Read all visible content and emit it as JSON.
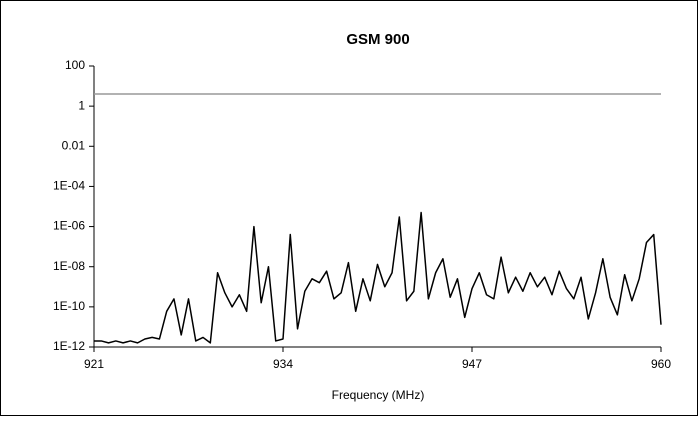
{
  "chart_data": {
    "type": "line",
    "title": "GSM 900",
    "xlabel": "Frequency (MHz)",
    "log_y": true,
    "xlim": [
      921,
      960
    ],
    "xticks": [
      921,
      934,
      947,
      960
    ],
    "ylim": [
      1e-12,
      100
    ],
    "yticks": [
      100,
      1,
      0.01,
      {
        "value": 0.0001,
        "label": "1E-04"
      },
      {
        "value": 1e-06,
        "label": "1E-06"
      },
      {
        "value": 1e-08,
        "label": "1E-08"
      },
      {
        "value": 1e-10,
        "label": "1E-10"
      },
      {
        "value": 1e-12,
        "label": "1E-12"
      }
    ],
    "series": [
      {
        "color": "#000000",
        "x": [
          921,
          921.5,
          922,
          922.5,
          923,
          923.5,
          924,
          924.5,
          925,
          925.5,
          926,
          926.5,
          927,
          927.5,
          928,
          928.5,
          929,
          929.5,
          930,
          930.5,
          931,
          931.5,
          932,
          932.5,
          933,
          933.5,
          934,
          934.5,
          935,
          935.5,
          936,
          936.5,
          937,
          937.5,
          938,
          938.5,
          939,
          939.5,
          940,
          940.5,
          941,
          941.5,
          942,
          942.5,
          943,
          943.5,
          944,
          944.5,
          945,
          945.5,
          946,
          946.5,
          947,
          947.5,
          948,
          948.5,
          949,
          949.5,
          950,
          950.5,
          951,
          951.5,
          952,
          952.5,
          953,
          953.5,
          954,
          954.5,
          955,
          955.5,
          956,
          956.5,
          957,
          957.5,
          958,
          958.5,
          959,
          959.5,
          960
        ],
        "values": [
          2e-12,
          2e-12,
          1.6e-12,
          2e-12,
          1.6e-12,
          2e-12,
          1.6e-12,
          2.5e-12,
          3e-12,
          2.5e-12,
          6e-11,
          2.5e-10,
          4e-12,
          2.5e-10,
          2e-12,
          3e-12,
          1.6e-12,
          5e-09,
          5e-10,
          1e-10,
          4e-10,
          6e-11,
          1e-06,
          1.6e-10,
          1e-08,
          2e-12,
          2.5e-12,
          4e-07,
          8e-12,
          6e-10,
          2.5e-09,
          1.6e-09,
          6e-09,
          2.5e-10,
          5e-10,
          1.6e-08,
          6e-11,
          2.5e-09,
          2e-10,
          1.3e-08,
          1e-09,
          5e-09,
          3e-06,
          2e-10,
          6e-10,
          5e-06,
          2.5e-10,
          5e-09,
          2.5e-08,
          3e-10,
          2.5e-09,
          3e-11,
          8e-10,
          5e-09,
          4e-10,
          2.5e-10,
          3e-08,
          5e-10,
          3e-09,
          6e-10,
          5e-09,
          1e-09,
          3e-09,
          4e-10,
          6e-09,
          8e-10,
          2.5e-10,
          3e-09,
          2.5e-11,
          5e-10,
          2.5e-08,
          3e-10,
          4e-11,
          4e-09,
          2e-10,
          2.5e-09,
          1.6e-07,
          4e-07,
          1.3e-11
        ]
      },
      {
        "color": "#999999",
        "x": [
          921,
          960
        ],
        "values": [
          4,
          4
        ]
      }
    ]
  }
}
